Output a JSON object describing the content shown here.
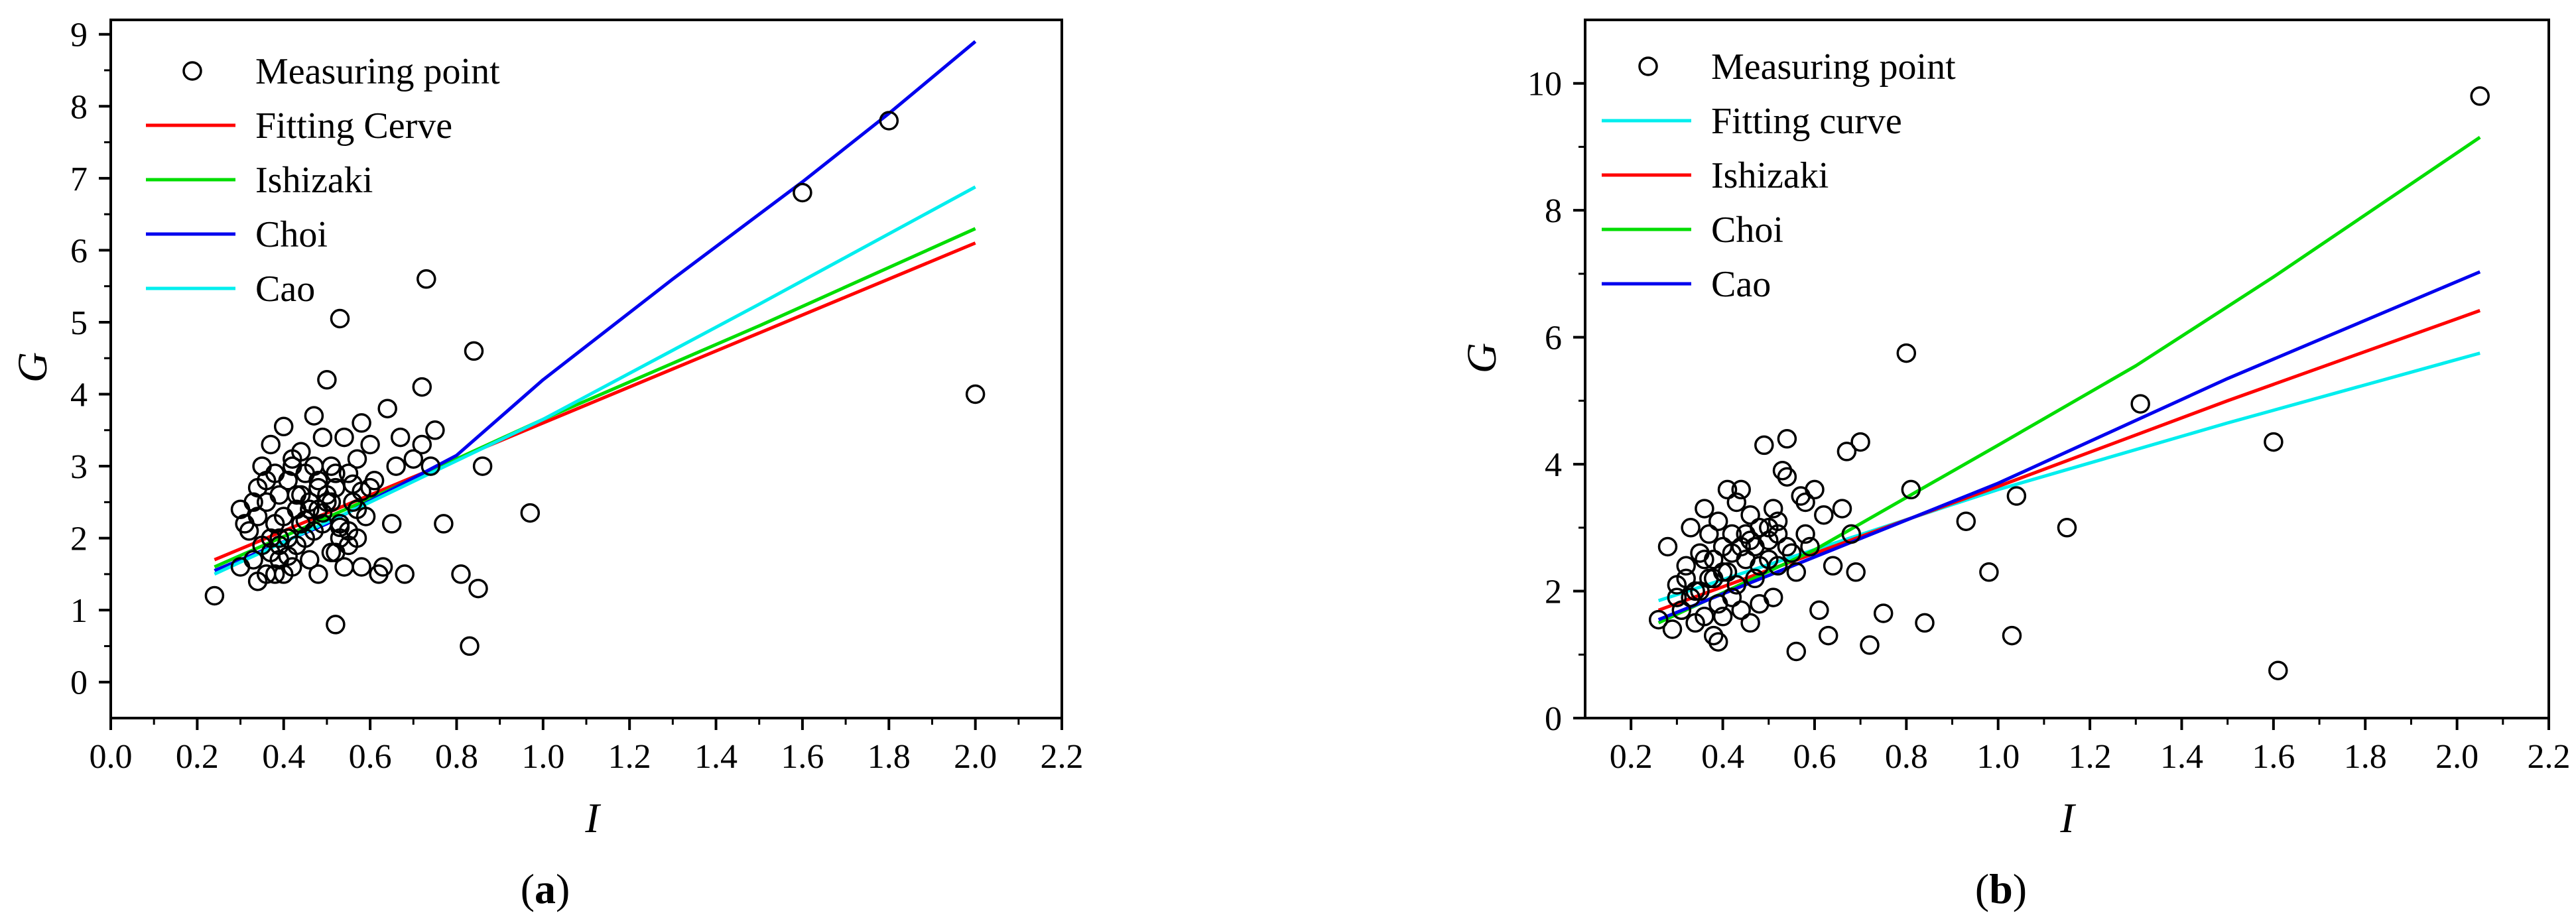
{
  "chart_data": [
    {
      "type": "scatter",
      "panel_label": "a",
      "xlabel": "I",
      "ylabel": "G",
      "xlim": [
        0.0,
        2.2
      ],
      "ylim": [
        -0.5,
        9.2
      ],
      "xticks": [
        "0.0",
        "0.2",
        "0.4",
        "0.6",
        "0.8",
        "1.0",
        "1.2",
        "1.4",
        "1.6",
        "1.8",
        "2.0",
        "2.2"
      ],
      "xtick_values": [
        0.0,
        0.2,
        0.4,
        0.6,
        0.8,
        1.0,
        1.2,
        1.4,
        1.6,
        1.8,
        2.0,
        2.2
      ],
      "yticks": [
        "0",
        "1",
        "2",
        "3",
        "4",
        "5",
        "6",
        "7",
        "8",
        "9"
      ],
      "ytick_values": [
        0,
        1,
        2,
        3,
        4,
        5,
        6,
        7,
        8,
        9
      ],
      "legend_position": "top-left",
      "legend": [
        {
          "label": "Measuring point",
          "kind": "marker"
        },
        {
          "label": "Fitting Cerve",
          "kind": "line",
          "color": "#ff0000"
        },
        {
          "label": "Ishizaki",
          "kind": "line",
          "color": "#00dd00"
        },
        {
          "label": "Choi",
          "kind": "line",
          "color": "#0000ee"
        },
        {
          "label": "Cao",
          "kind": "line",
          "color": "#00eeee"
        }
      ],
      "series": [
        {
          "name": "Fitting Cerve",
          "color": "#ff0000",
          "x": [
            0.24,
            2.0
          ],
          "y": [
            1.7,
            6.1
          ]
        },
        {
          "name": "Ishizaki",
          "color": "#00dd00",
          "x": [
            0.24,
            0.6,
            1.0,
            1.5,
            2.0
          ],
          "y": [
            1.6,
            2.55,
            3.65,
            4.95,
            6.3
          ]
        },
        {
          "name": "Choi",
          "color": "#0000ee",
          "x": [
            0.24,
            0.5,
            0.8,
            1.0,
            1.3,
            1.6,
            1.8,
            2.0
          ],
          "y": [
            1.55,
            2.2,
            3.15,
            4.2,
            5.6,
            6.95,
            7.9,
            8.9
          ]
        },
        {
          "name": "Cao",
          "color": "#00eeee",
          "x": [
            0.24,
            0.6,
            1.0,
            1.5,
            2.0
          ],
          "y": [
            1.5,
            2.5,
            3.65,
            5.25,
            6.88
          ]
        }
      ],
      "points": {
        "name": "Measuring point",
        "x": [
          0.24,
          0.3,
          0.3,
          0.32,
          0.33,
          0.34,
          0.34,
          0.35,
          0.35,
          0.36,
          0.36,
          0.37,
          0.37,
          0.38,
          0.38,
          0.38,
          0.39,
          0.39,
          0.4,
          0.4,
          0.4,
          0.41,
          0.41,
          0.42,
          0.42,
          0.43,
          0.43,
          0.44,
          0.44,
          0.45,
          0.45,
          0.46,
          0.46,
          0.47,
          0.47,
          0.48,
          0.48,
          0.49,
          0.49,
          0.5,
          0.5,
          0.51,
          0.51,
          0.52,
          0.52,
          0.53,
          0.53,
          0.54,
          0.54,
          0.55,
          0.55,
          0.56,
          0.57,
          0.57,
          0.58,
          0.58,
          0.59,
          0.6,
          0.6,
          0.61,
          0.62,
          0.63,
          0.64,
          0.65,
          0.66,
          0.67,
          0.68,
          0.7,
          0.72,
          0.72,
          0.73,
          0.74,
          0.75,
          0.77,
          0.81,
          0.83,
          0.84,
          0.85,
          0.86,
          0.97,
          0.31,
          0.33,
          0.36,
          0.39,
          0.42,
          0.45,
          0.48,
          0.5,
          0.53,
          0.56,
          0.39,
          0.43,
          0.47,
          0.49,
          0.52,
          0.55,
          0.58,
          0.44,
          0.46,
          0.41,
          0.37,
          0.34,
          0.51,
          0.53,
          0.57,
          0.48,
          0.52,
          1.6,
          1.8,
          2.0
        ],
        "y": [
          1.2,
          1.6,
          2.4,
          2.1,
          1.7,
          1.4,
          2.7,
          1.9,
          3.0,
          1.5,
          2.5,
          3.3,
          1.8,
          2.2,
          2.9,
          1.5,
          2.6,
          1.7,
          3.55,
          2.3,
          1.5,
          2.8,
          2.0,
          3.1,
          1.6,
          2.4,
          1.9,
          3.2,
          2.6,
          2.0,
          2.9,
          1.7,
          2.4,
          3.7,
          2.1,
          1.5,
          2.8,
          3.4,
          2.2,
          4.2,
          2.5,
          1.8,
          3.0,
          0.8,
          2.7,
          5.05,
          2.2,
          3.4,
          1.6,
          2.9,
          1.9,
          2.5,
          3.1,
          2.0,
          3.6,
          1.6,
          2.3,
          3.3,
          2.7,
          2.8,
          1.5,
          1.6,
          3.8,
          2.2,
          3.0,
          3.4,
          1.5,
          3.1,
          4.1,
          3.3,
          5.6,
          3.0,
          3.5,
          2.2,
          1.5,
          0.5,
          4.6,
          1.3,
          3.0,
          2.35,
          2.2,
          2.5,
          2.8,
          2.0,
          3.0,
          2.25,
          2.4,
          2.6,
          2.0,
          2.75,
          1.9,
          2.6,
          3.0,
          2.35,
          2.9,
          2.1,
          2.65,
          2.2,
          2.5,
          1.75,
          2.0,
          2.3,
          2.5,
          2.15,
          2.4,
          2.7,
          1.8,
          6.8,
          7.8,
          4.0
        ]
      }
    },
    {
      "type": "scatter",
      "panel_label": "b",
      "xlabel": "I",
      "ylabel": "G",
      "xlim": [
        0.1,
        2.2
      ],
      "ylim": [
        0.0,
        11.0
      ],
      "xticks": [
        "0.2",
        "0.4",
        "0.6",
        "0.8",
        "1.0",
        "1.2",
        "1.4",
        "1.6",
        "1.8",
        "2.0",
        "2.2"
      ],
      "xtick_values": [
        0.2,
        0.4,
        0.6,
        0.8,
        1.0,
        1.2,
        1.4,
        1.6,
        1.8,
        2.0,
        2.2
      ],
      "yticks": [
        "0",
        "2",
        "4",
        "6",
        "8",
        "10"
      ],
      "ytick_values": [
        0,
        2,
        4,
        6,
        8,
        10
      ],
      "legend_position": "top-left",
      "legend": [
        {
          "label": "Measuring point",
          "kind": "marker"
        },
        {
          "label": "Fitting curve",
          "kind": "line",
          "color": "#00eeee"
        },
        {
          "label": "Ishizaki",
          "kind": "line",
          "color": "#ff0000"
        },
        {
          "label": "Choi",
          "kind": "line",
          "color": "#00dd00"
        },
        {
          "label": "Cao",
          "kind": "line",
          "color": "#0000ee"
        }
      ],
      "series": [
        {
          "name": "Fitting curve",
          "color": "#00eeee",
          "x": [
            0.26,
            1.0,
            1.5,
            2.05
          ],
          "y": [
            1.85,
            3.6,
            4.65,
            5.75
          ]
        },
        {
          "name": "Ishizaki",
          "color": "#ff0000",
          "x": [
            0.26,
            1.0,
            1.5,
            2.05
          ],
          "y": [
            1.7,
            3.65,
            5.0,
            6.42
          ]
        },
        {
          "name": "Choi",
          "color": "#00dd00",
          "x": [
            0.26,
            0.6,
            1.0,
            1.3,
            1.6,
            2.05
          ],
          "y": [
            1.5,
            2.65,
            4.3,
            5.55,
            6.95,
            9.15
          ]
        },
        {
          "name": "Cao",
          "color": "#0000ee",
          "x": [
            0.26,
            1.0,
            1.5,
            2.05
          ],
          "y": [
            1.55,
            3.7,
            5.35,
            7.03
          ]
        }
      ],
      "points": {
        "name": "Measuring point",
        "x": [
          0.26,
          0.28,
          0.29,
          0.3,
          0.31,
          0.32,
          0.33,
          0.33,
          0.34,
          0.35,
          0.35,
          0.36,
          0.36,
          0.37,
          0.37,
          0.38,
          0.38,
          0.39,
          0.39,
          0.4,
          0.4,
          0.41,
          0.41,
          0.42,
          0.42,
          0.43,
          0.43,
          0.44,
          0.44,
          0.45,
          0.45,
          0.46,
          0.46,
          0.47,
          0.47,
          0.48,
          0.48,
          0.49,
          0.5,
          0.5,
          0.51,
          0.51,
          0.52,
          0.52,
          0.53,
          0.54,
          0.54,
          0.55,
          0.56,
          0.56,
          0.57,
          0.58,
          0.59,
          0.6,
          0.61,
          0.62,
          0.63,
          0.64,
          0.66,
          0.67,
          0.68,
          0.69,
          0.7,
          0.72,
          0.75,
          0.8,
          0.81,
          0.84,
          0.93,
          0.98,
          1.03,
          1.04,
          1.15,
          1.31,
          1.6,
          1.61,
          2.05,
          0.32,
          0.36,
          0.4,
          0.44,
          0.48,
          0.52,
          0.38,
          0.42,
          0.46,
          0.34,
          0.5,
          0.54,
          0.58,
          0.3,
          0.39
        ],
        "y": [
          1.55,
          2.7,
          1.4,
          2.1,
          1.7,
          2.4,
          1.9,
          3.0,
          1.5,
          2.6,
          2.0,
          3.3,
          1.6,
          2.9,
          2.2,
          1.3,
          2.5,
          3.1,
          1.8,
          2.7,
          1.6,
          3.6,
          2.3,
          1.9,
          2.9,
          3.4,
          2.1,
          3.6,
          1.7,
          2.5,
          2.9,
          3.2,
          1.5,
          2.2,
          2.7,
          3.0,
          1.8,
          4.3,
          2.5,
          2.8,
          3.3,
          1.9,
          3.1,
          2.4,
          3.9,
          3.8,
          4.4,
          2.6,
          2.3,
          1.05,
          3.5,
          2.9,
          2.7,
          3.6,
          1.7,
          3.2,
          1.3,
          2.4,
          3.3,
          4.2,
          2.9,
          2.3,
          4.35,
          1.15,
          1.65,
          5.75,
          3.6,
          1.5,
          3.1,
          2.3,
          1.3,
          3.5,
          3.0,
          4.95,
          4.35,
          0.75,
          9.8,
          2.2,
          2.5,
          2.3,
          2.7,
          2.4,
          2.9,
          2.2,
          2.6,
          2.8,
          2.0,
          3.0,
          2.7,
          3.4,
          1.9,
          1.2
        ]
      }
    }
  ]
}
